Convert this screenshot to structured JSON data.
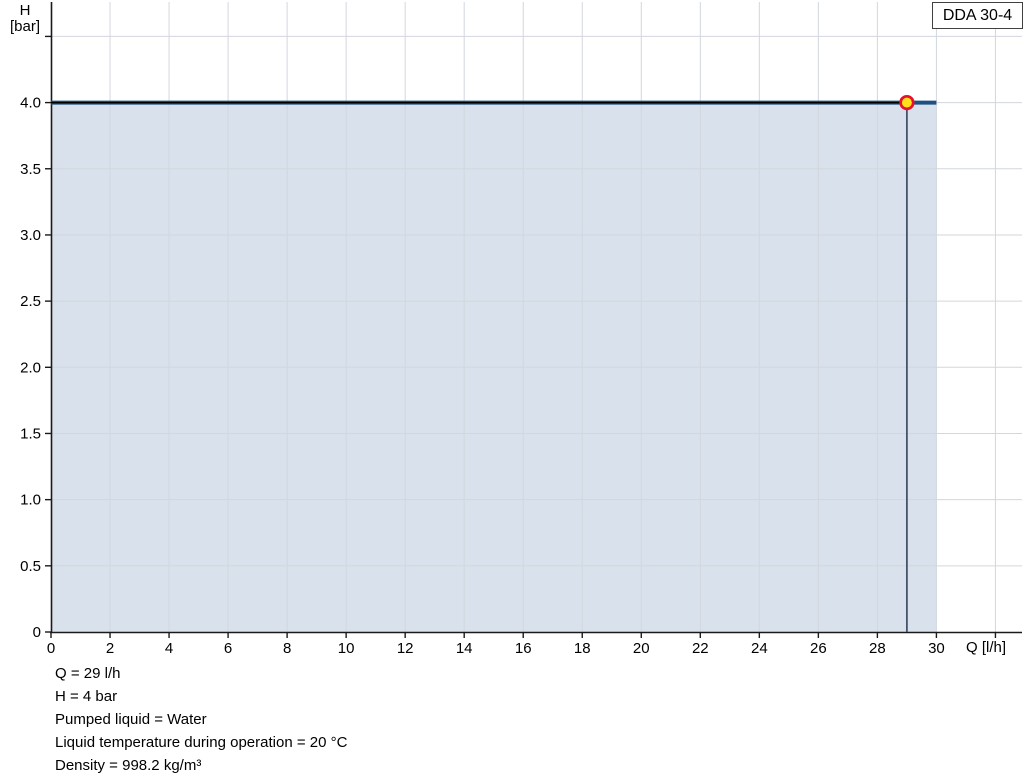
{
  "badge": {
    "label": "DDA 30-4"
  },
  "axes": {
    "y_title": "H",
    "y_unit": "[bar]",
    "x_title": "Q [l/h]"
  },
  "info": {
    "lines": [
      "Q = 29 l/h",
      "H = 4 bar",
      "Pumped liquid = Water",
      "Liquid temperature during operation = 20 °C",
      "Density = 998.2 kg/m³"
    ]
  },
  "chart_data": {
    "type": "area",
    "title": "DDA 30-4",
    "xlabel": "Q [l/h]",
    "ylabel": "H [bar]",
    "xlim": [
      0,
      32.9
    ],
    "ylim": [
      0,
      4.76
    ],
    "grid": true,
    "x_ticks": [
      {
        "v": 0,
        "label": "0"
      },
      {
        "v": 2,
        "label": "2"
      },
      {
        "v": 4,
        "label": "4"
      },
      {
        "v": 6,
        "label": "6"
      },
      {
        "v": 8,
        "label": "8"
      },
      {
        "v": 10,
        "label": "10"
      },
      {
        "v": 12,
        "label": "12"
      },
      {
        "v": 14,
        "label": "14"
      },
      {
        "v": 16,
        "label": "16"
      },
      {
        "v": 18,
        "label": "18"
      },
      {
        "v": 20,
        "label": "20"
      },
      {
        "v": 22,
        "label": "22"
      },
      {
        "v": 24,
        "label": "24"
      },
      {
        "v": 26,
        "label": "26"
      },
      {
        "v": 28,
        "label": "28"
      },
      {
        "v": 30,
        "label": "30"
      },
      {
        "v": 32,
        "label": ""
      }
    ],
    "y_ticks": [
      {
        "v": 0,
        "label": "0"
      },
      {
        "v": 0.5,
        "label": "0.5"
      },
      {
        "v": 1,
        "label": "1.0"
      },
      {
        "v": 1.5,
        "label": "1.5"
      },
      {
        "v": 2,
        "label": "2.0"
      },
      {
        "v": 2.5,
        "label": "2.5"
      },
      {
        "v": 3,
        "label": "3.0"
      },
      {
        "v": 3.5,
        "label": "3.5"
      },
      {
        "v": 4,
        "label": "4.0"
      },
      {
        "v": 4.5,
        "label": ""
      }
    ],
    "series": [
      {
        "name": "head-curve",
        "x": [
          0,
          30
        ],
        "y": [
          4.0,
          4.0
        ],
        "filled": true
      }
    ],
    "operating_point": {
      "q": 29,
      "h": 4.0
    },
    "colors": {
      "curve": "#1e5181",
      "area_fill": "#d9e1ec",
      "gridline": "#d2d7de",
      "axis": "#1a1a1a",
      "crosshair": "#000000",
      "drop_line": "#44546a",
      "marker_fill": "#ffe01a",
      "marker_ring": "#e8112d"
    }
  }
}
